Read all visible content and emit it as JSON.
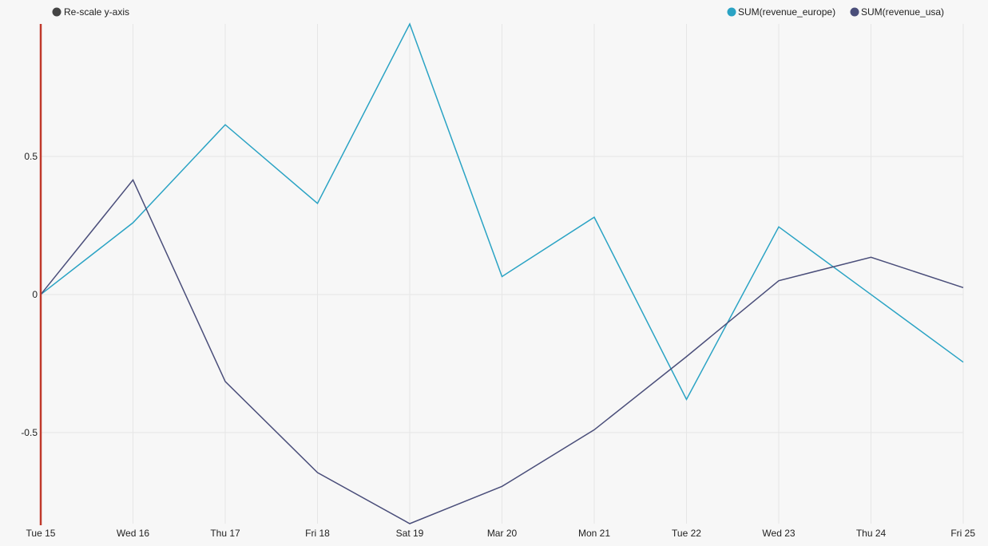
{
  "controls": {
    "rescale_label": "Re-scale y-axis",
    "rescale_color": "#444444"
  },
  "chart_data": {
    "type": "line",
    "title": "",
    "xlabel": "",
    "ylabel": "",
    "categories": [
      "Tue 15",
      "Wed 16",
      "Thu 17",
      "Fri 18",
      "Sat 19",
      "Mar 20",
      "Mon 21",
      "Tue 22",
      "Wed 23",
      "Thu 24",
      "Fri 25"
    ],
    "yticks": [
      "0.5",
      "0",
      "-0.5"
    ],
    "ytick_values": [
      0.5,
      0,
      -0.5
    ],
    "ylim": [
      -0.83,
      0.98
    ],
    "grid": true,
    "legend_position": "top-right",
    "cursor_at": "Tue 15",
    "cursor_color": "#c0392b",
    "series": [
      {
        "name": "SUM(revenue_europe)",
        "color": "#2aa3c4",
        "values": [
          0.0,
          0.26,
          0.615,
          0.33,
          0.98,
          0.065,
          0.28,
          -0.38,
          0.245,
          0.0,
          -0.245
        ]
      },
      {
        "name": "SUM(revenue_usa)",
        "color": "#4a4e7a",
        "values": [
          0.0,
          0.415,
          -0.315,
          -0.645,
          -0.83,
          -0.695,
          -0.49,
          -0.225,
          0.05,
          0.135,
          0.025
        ]
      }
    ]
  }
}
